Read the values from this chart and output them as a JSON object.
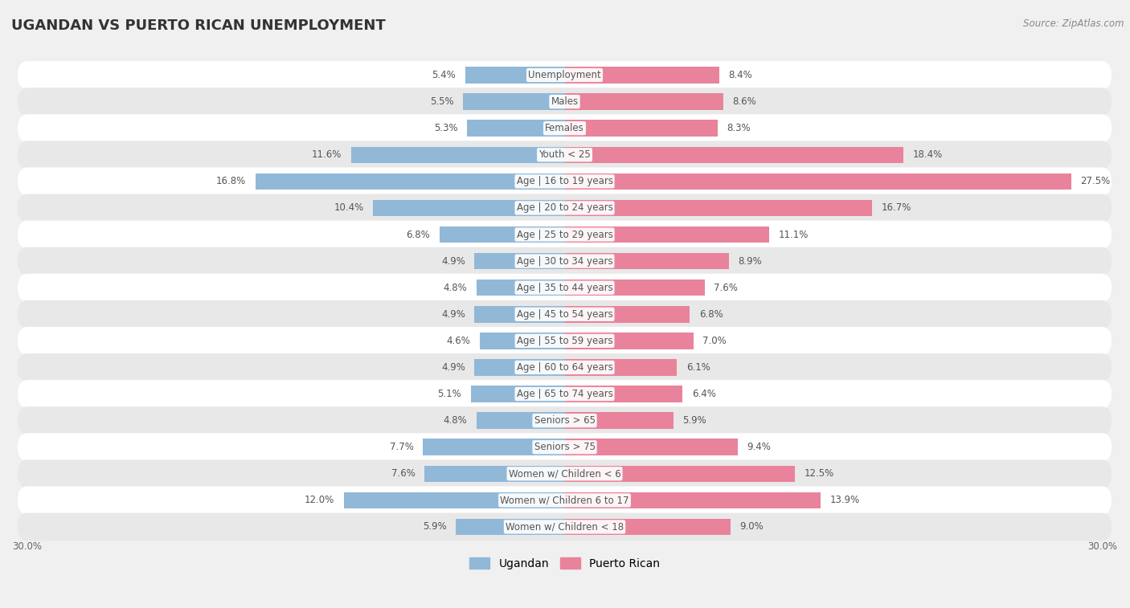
{
  "title": "UGANDAN VS PUERTO RICAN UNEMPLOYMENT",
  "source": "Source: ZipAtlas.com",
  "categories": [
    "Unemployment",
    "Males",
    "Females",
    "Youth < 25",
    "Age | 16 to 19 years",
    "Age | 20 to 24 years",
    "Age | 25 to 29 years",
    "Age | 30 to 34 years",
    "Age | 35 to 44 years",
    "Age | 45 to 54 years",
    "Age | 55 to 59 years",
    "Age | 60 to 64 years",
    "Age | 65 to 74 years",
    "Seniors > 65",
    "Seniors > 75",
    "Women w/ Children < 6",
    "Women w/ Children 6 to 17",
    "Women w/ Children < 18"
  ],
  "ugandan": [
    5.4,
    5.5,
    5.3,
    11.6,
    16.8,
    10.4,
    6.8,
    4.9,
    4.8,
    4.9,
    4.6,
    4.9,
    5.1,
    4.8,
    7.7,
    7.6,
    12.0,
    5.9
  ],
  "puerto_rican": [
    8.4,
    8.6,
    8.3,
    18.4,
    27.5,
    16.7,
    11.1,
    8.9,
    7.6,
    6.8,
    7.0,
    6.1,
    6.4,
    5.9,
    9.4,
    12.5,
    13.9,
    9.0
  ],
  "ugandan_color": "#92b8d8",
  "puerto_rican_color": "#e8839b",
  "background_color": "#f0f0f0",
  "row_color_light": "#ffffff",
  "row_color_dark": "#e8e8e8",
  "axis_limit": 30.0,
  "legend_ugandan": "Ugandan",
  "legend_puerto_rican": "Puerto Rican",
  "title_fontsize": 13,
  "label_fontsize": 8.5,
  "cat_fontsize": 8.5
}
